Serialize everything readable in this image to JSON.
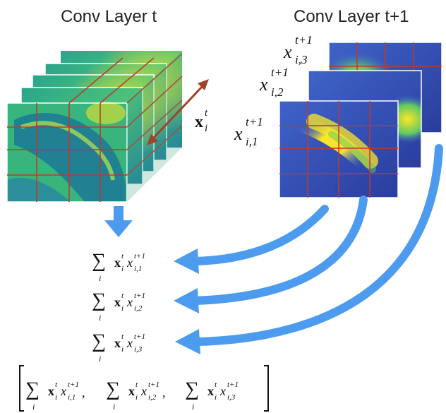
{
  "titles": {
    "left": "Conv Layer t",
    "right": "Conv Layer t+1"
  },
  "labels": {
    "xi_t": {
      "base": "x",
      "sub": "i",
      "sup": "t"
    },
    "x_1": {
      "base": "x",
      "sub": "i,1",
      "sup": "t+1"
    },
    "x_2": {
      "base": "x",
      "sub": "i,2",
      "sup": "t+1"
    },
    "x_3": {
      "base": "x",
      "sub": "i,3",
      "sup": "t+1"
    }
  },
  "sums": {
    "sigma": "∑",
    "index": "i",
    "bold_x": "x",
    "sup_t": "t",
    "sub_i": "i",
    "x": "x",
    "sup_t1": "t+1",
    "sub_1": "i,1",
    "sub_2": "i,2",
    "sub_3": "i,3"
  },
  "vector": {
    "comma": ","
  },
  "colors": {
    "arrow_blue": "#4d9bef",
    "grid_red": "#c0392b",
    "depth_arrow": "#a0432c",
    "map_teal": "#1f9e89",
    "map_yellow": "#fde725",
    "map_navy": "#2a3d9e"
  }
}
